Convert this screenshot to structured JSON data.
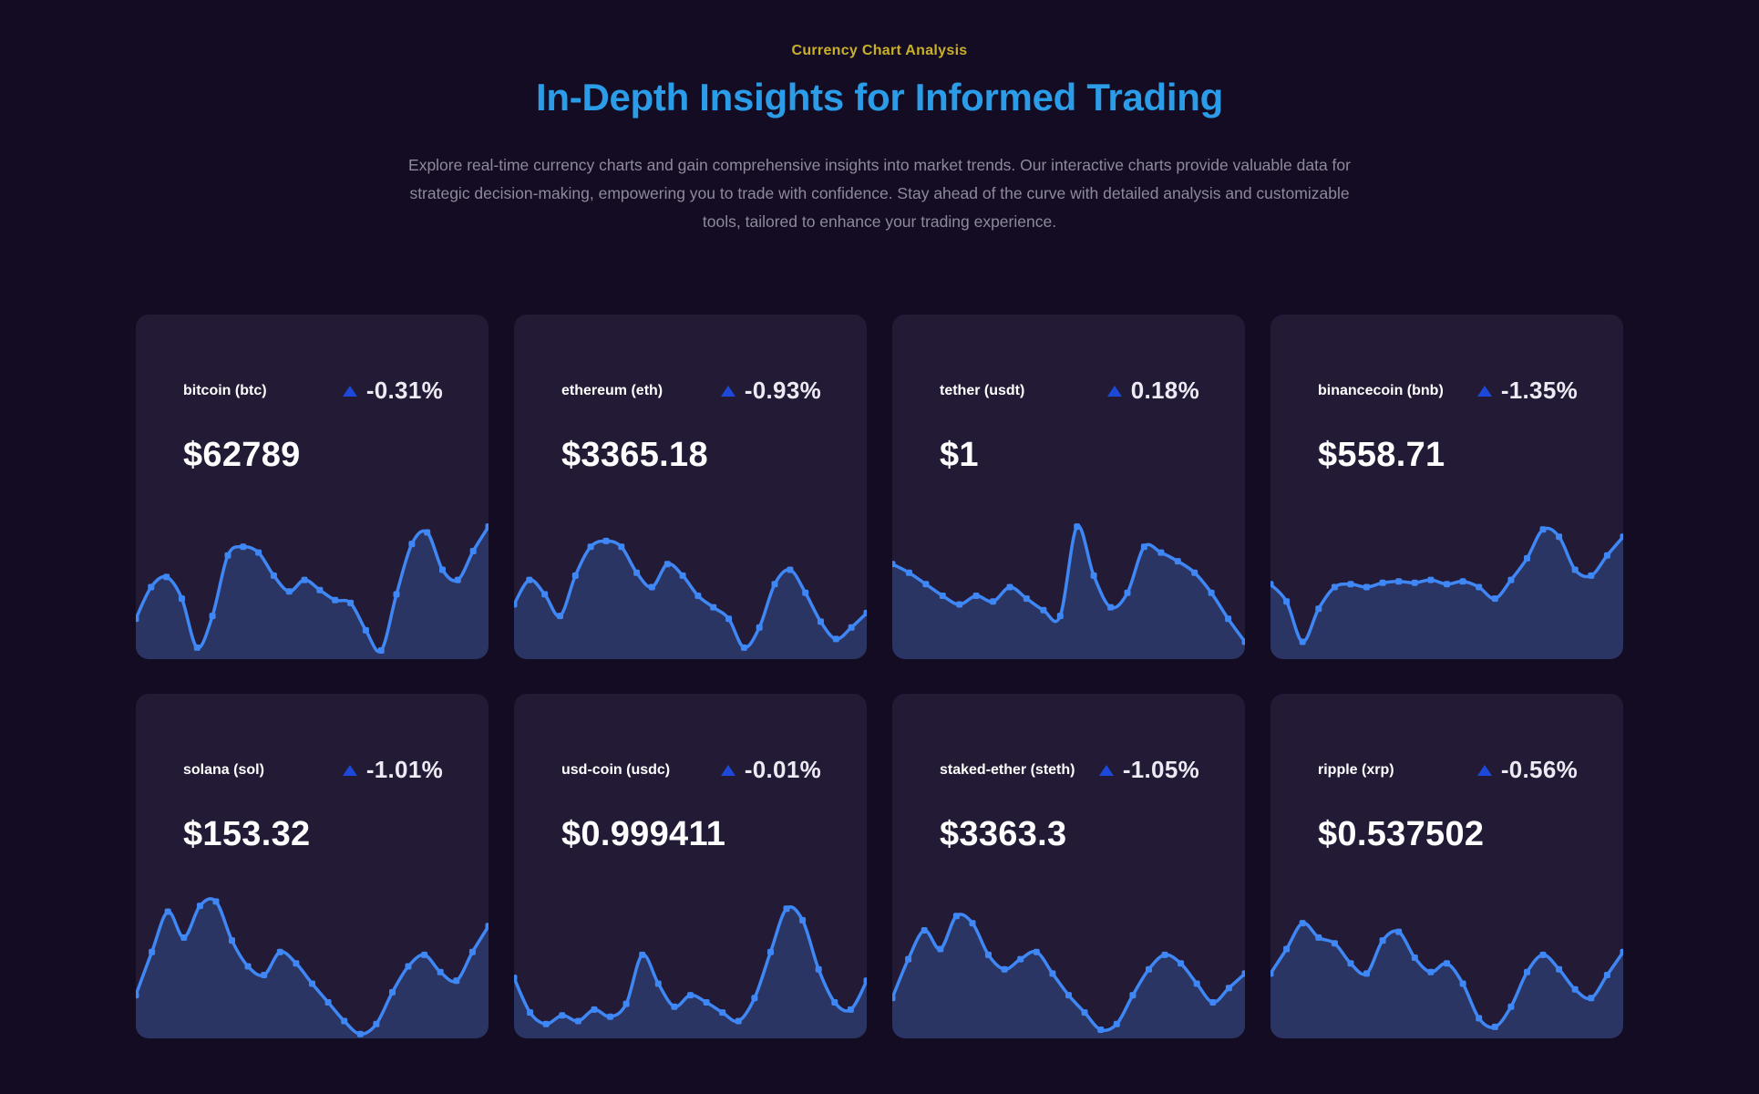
{
  "header": {
    "eyebrow": "Currency Chart Analysis",
    "title": "In-Depth Insights for Informed Trading",
    "description": "Explore real-time currency charts and gain comprehensive insights into market trends. Our interactive charts provide valuable data for strategic decision-making, empowering you to trade with confidence. Stay ahead of the curve with detailed analysis and customizable tools, tailored to enhance your trading experience."
  },
  "colors": {
    "page_bg": "#140c22",
    "card_bg": "#231a35",
    "eyebrow": "#c9b02b",
    "title": "#2b9ce8",
    "description": "#8e8a9b",
    "spark_line": "#3f87f5",
    "spark_fill": "rgba(63,135,245,0.25)",
    "triangle": "#1d49d8"
  },
  "chart_data": [
    {
      "type": "area",
      "title": "bitcoin (btc)",
      "change": "-0.31%",
      "price": "$62789",
      "ylim": [
        0,
        100
      ],
      "legend": "none",
      "markers": true,
      "values": [
        28,
        50,
        57,
        42,
        8,
        30,
        72,
        78,
        74,
        58,
        47,
        55,
        48,
        41,
        39,
        20,
        6,
        45,
        80,
        88,
        62,
        55,
        75,
        92
      ]
    },
    {
      "type": "area",
      "title": "ethereum (eth)",
      "change": "-0.93%",
      "price": "$3365.18",
      "ylim": [
        0,
        100
      ],
      "legend": "none",
      "markers": true,
      "values": [
        38,
        55,
        45,
        30,
        58,
        78,
        82,
        78,
        60,
        50,
        66,
        58,
        44,
        36,
        28,
        8,
        22,
        52,
        62,
        46,
        26,
        14,
        22,
        32
      ]
    },
    {
      "type": "area",
      "title": "tether (usdt)",
      "change": "0.18%",
      "price": "$1",
      "ylim": [
        0,
        100
      ],
      "legend": "none",
      "markers": true,
      "values": [
        66,
        60,
        52,
        44,
        38,
        44,
        40,
        50,
        42,
        34,
        30,
        92,
        58,
        36,
        46,
        78,
        74,
        68,
        60,
        46,
        28,
        12
      ]
    },
    {
      "type": "area",
      "title": "binancecoin (bnb)",
      "change": "-1.35%",
      "price": "$558.71",
      "ylim": [
        0,
        100
      ],
      "legend": "none",
      "markers": true,
      "values": [
        52,
        40,
        12,
        35,
        50,
        52,
        50,
        53,
        54,
        53,
        55,
        52,
        54,
        50,
        42,
        55,
        70,
        90,
        85,
        62,
        58,
        72,
        85
      ]
    },
    {
      "type": "area",
      "title": "solana (sol)",
      "change": "-1.01%",
      "price": "$153.32",
      "ylim": [
        0,
        100
      ],
      "legend": "none",
      "markers": true,
      "values": [
        30,
        60,
        88,
        70,
        92,
        95,
        68,
        50,
        44,
        60,
        52,
        38,
        25,
        12,
        3,
        10,
        32,
        50,
        58,
        46,
        40,
        60,
        78
      ]
    },
    {
      "type": "area",
      "title": "usd-coin (usdc)",
      "change": "-0.01%",
      "price": "$0.999411",
      "ylim": [
        0,
        100
      ],
      "legend": "none",
      "markers": true,
      "values": [
        42,
        18,
        10,
        16,
        12,
        20,
        15,
        24,
        58,
        38,
        22,
        30,
        25,
        18,
        12,
        28,
        60,
        90,
        82,
        48,
        25,
        20,
        40
      ]
    },
    {
      "type": "area",
      "title": "staked-ether (steth)",
      "change": "-1.05%",
      "price": "$3363.3",
      "ylim": [
        0,
        100
      ],
      "legend": "none",
      "markers": true,
      "values": [
        28,
        55,
        75,
        62,
        85,
        80,
        58,
        48,
        55,
        60,
        45,
        30,
        18,
        6,
        10,
        30,
        48,
        58,
        52,
        38,
        25,
        35,
        45
      ]
    },
    {
      "type": "area",
      "title": "ripple (xrp)",
      "change": "-0.56%",
      "price": "$0.537502",
      "ylim": [
        0,
        100
      ],
      "legend": "none",
      "markers": true,
      "values": [
        45,
        62,
        80,
        70,
        66,
        52,
        45,
        68,
        74,
        56,
        46,
        52,
        38,
        14,
        8,
        22,
        46,
        58,
        48,
        34,
        28,
        44,
        60
      ]
    }
  ]
}
